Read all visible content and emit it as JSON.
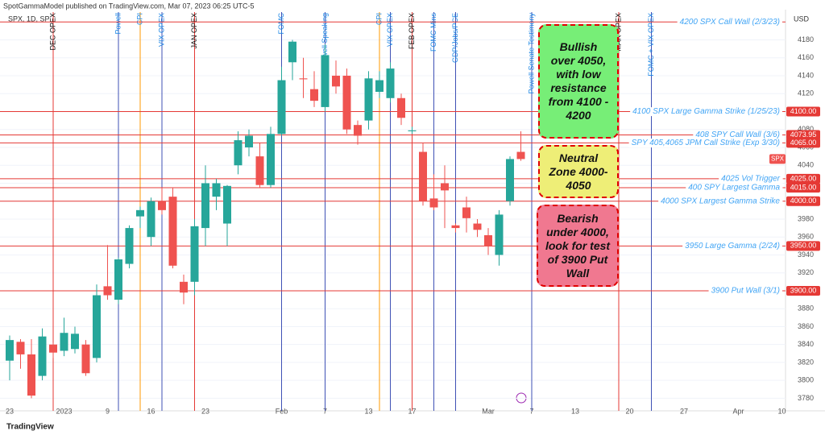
{
  "header": {
    "publisher": "SpotGammaModel published on TradingView.com, Mar 07, 2023 06:25 UTC-5",
    "symbol": "SPX, 1D, SP",
    "currency": "USD",
    "footer": "TradingView"
  },
  "chart_data": {
    "type": "candlestick",
    "categories": [
      "23",
      null,
      null,
      null,
      null,
      "2023",
      null,
      null,
      null,
      "9",
      null,
      null,
      null,
      "16",
      null,
      null,
      null,
      null,
      "23",
      null,
      null,
      null,
      null,
      null,
      null,
      "Feb",
      null,
      null,
      null,
      "7",
      null,
      null,
      null,
      "13",
      null,
      null,
      null,
      "17",
      null,
      null,
      null,
      null,
      null,
      null,
      "Mar",
      null,
      null,
      null,
      "7",
      null,
      null,
      null,
      "13",
      null,
      null,
      null,
      null,
      "20",
      null,
      null,
      null,
      null,
      "27",
      null,
      null,
      null,
      null,
      "Apr",
      null,
      null,
      null,
      "10"
    ],
    "open": [
      3822,
      3843,
      3829,
      3805,
      3840,
      3833,
      3835,
      3840,
      3825,
      3905,
      3890,
      3930,
      3983,
      3960,
      4000,
      4005,
      3910,
      3910,
      3970,
      4005,
      3975,
      4040,
      4060,
      4050,
      4018,
      4075,
      4155,
      4137,
      4125,
      4105,
      4140,
      4140,
      4085,
      4090,
      4122,
      4115,
      4115,
      4078,
      4055,
      4003,
      4020,
      3973,
      3993,
      3975,
      3962,
      3940,
      4000,
      4055,
      null,
      null,
      null,
      null,
      null,
      null,
      null,
      null,
      null,
      null,
      null,
      null,
      null,
      null,
      null,
      null,
      null,
      null,
      null,
      null,
      null,
      null,
      null,
      null
    ],
    "high": [
      3850,
      3846,
      3846,
      3858,
      3842,
      3870,
      3860,
      3845,
      3907,
      3951,
      3937,
      3973,
      3994,
      4004,
      4015,
      4015,
      3918,
      3980,
      4040,
      4025,
      4018,
      4078,
      4080,
      4065,
      4083,
      4150,
      4180,
      4160,
      4145,
      4175,
      4157,
      4148,
      4090,
      4145,
      4145,
      4155,
      4120,
      4083,
      4065,
      4030,
      4040,
      3975,
      4005,
      3980,
      3970,
      3990,
      4050,
      4078,
      null,
      null,
      null,
      null,
      null,
      null,
      null,
      null,
      null,
      null,
      null,
      null,
      null,
      null,
      null,
      null,
      null,
      null,
      null,
      null,
      null,
      null,
      null,
      null
    ],
    "low": [
      3800,
      3813,
      3780,
      3800,
      3825,
      3827,
      3830,
      3805,
      3820,
      3890,
      3885,
      3925,
      3970,
      3950,
      3985,
      3925,
      3885,
      3895,
      3950,
      3990,
      3950,
      4030,
      4050,
      4015,
      4015,
      4073,
      4135,
      4115,
      4105,
      4100,
      4120,
      4075,
      4063,
      4080,
      4115,
      4110,
      4085,
      4075,
      3995,
      3990,
      3970,
      3965,
      3965,
      3960,
      3940,
      3928,
      3995,
      4045,
      null,
      null,
      null,
      null,
      null,
      null,
      null,
      null,
      null,
      null,
      null,
      null,
      null,
      null,
      null,
      null,
      null,
      null,
      null,
      null,
      null,
      null,
      null,
      null
    ],
    "close": [
      3845,
      3829,
      3783,
      3849,
      3831,
      3853,
      3852,
      3808,
      3895,
      3895,
      3935,
      3970,
      3990,
      4000,
      3990,
      3928,
      3898,
      3972,
      4020,
      4020,
      4017,
      4068,
      4073,
      4018,
      4075,
      4135,
      4178,
      4136,
      4112,
      4163,
      4128,
      4080,
      4073,
      4137,
      4135,
      4148,
      4093,
      4079,
      4000,
      3993,
      4012,
      3970,
      3981,
      3968,
      3950,
      3985,
      4047,
      4047,
      null,
      null,
      null,
      null,
      null,
      null,
      null,
      null,
      null,
      null,
      null,
      null,
      null,
      null,
      null,
      null,
      null,
      null,
      null,
      null,
      null,
      null,
      null,
      null
    ],
    "up_color": "#26a69a",
    "down_color": "#ef5350",
    "ylim": [
      3766,
      4211
    ],
    "yticks": [
      3780,
      3800,
      3820,
      3840,
      3860,
      3880,
      3900,
      3920,
      3940,
      3960,
      3980,
      4000,
      4020,
      4040,
      4060,
      4080,
      4100,
      4120,
      4140,
      4160,
      4180
    ],
    "symbol_tag": "SPX",
    "levels": [
      {
        "value": 4200,
        "label": "4200 SPX Call Wall (2/3/23)"
      },
      {
        "value": 4100,
        "label": "4100 SPX Large Gamma Strike (1/25/23)",
        "price_label": "4100.00"
      },
      {
        "value": 4073.95,
        "label": "408 SPY Call Wall (3/6)",
        "price_label": "4073.95"
      },
      {
        "value": 4065,
        "label": "SPY 405,4065 JPM Call Strike (Exp 3/30)",
        "price_label": "4065.00"
      },
      {
        "value": 4025,
        "label": "4025 Vol Trigger",
        "price_label": "4025.00"
      },
      {
        "value": 4015,
        "label": "400 SPY Largest Gamma",
        "price_label": "4015.00"
      },
      {
        "value": 4000,
        "label": "4000 SPX Largest Gamma Strike",
        "price_label": "4000.00"
      },
      {
        "value": 3950,
        "label": "3950 Large Gamma (2/24)",
        "price_label": "3950.00"
      },
      {
        "value": 3900,
        "label": "3900 Put Wall (3/1)",
        "price_label": "3900.00"
      }
    ],
    "level_color": "#e53935",
    "events": [
      {
        "x": 4,
        "label": "DEC OPEX",
        "color": "#e53935"
      },
      {
        "x": 10,
        "label": "Powell",
        "color": "#3f51b5"
      },
      {
        "x": 12,
        "label": "CPI",
        "color": "#ff9800"
      },
      {
        "x": 14,
        "label": "VIX OPEX",
        "color": "#3f51b5"
      },
      {
        "x": 17,
        "label": "JAN OPEX",
        "color": "#e53935"
      },
      {
        "x": 25,
        "label": "FOMC",
        "color": "#3f51b5"
      },
      {
        "x": 29,
        "label": "Powell Speaking",
        "color": "#3f51b5"
      },
      {
        "x": 34,
        "label": "CPI",
        "color": "#ff9800"
      },
      {
        "x": 35,
        "label": "VIX OPEX",
        "color": "#3f51b5"
      },
      {
        "x": 37,
        "label": "FEB OPEX",
        "color": "#e53935"
      },
      {
        "x": 39,
        "label": "FOMC Mins",
        "color": "#3f51b5"
      },
      {
        "x": 41,
        "label": "GDP/Jobs/PCE",
        "color": "#3f51b5"
      },
      {
        "x": 48,
        "label": "Powell Senate Testimony",
        "color": "#3f51b5"
      },
      {
        "x": 56,
        "label": "MAR OPEX",
        "color": "#e53935"
      },
      {
        "x": 59,
        "label": "FOMC + VIX OPEX",
        "color": "#3f51b5"
      }
    ],
    "zones": [
      {
        "text": "Bullish over 4050, with low resistance from 4100 - 4200",
        "color": "#77ee77"
      },
      {
        "text": "Neutral Zone 4000-4050",
        "color": "#eeee77"
      },
      {
        "text": "Bearish under 4000, look for test of 3900 Put Wall",
        "color": "#f07890"
      }
    ]
  }
}
